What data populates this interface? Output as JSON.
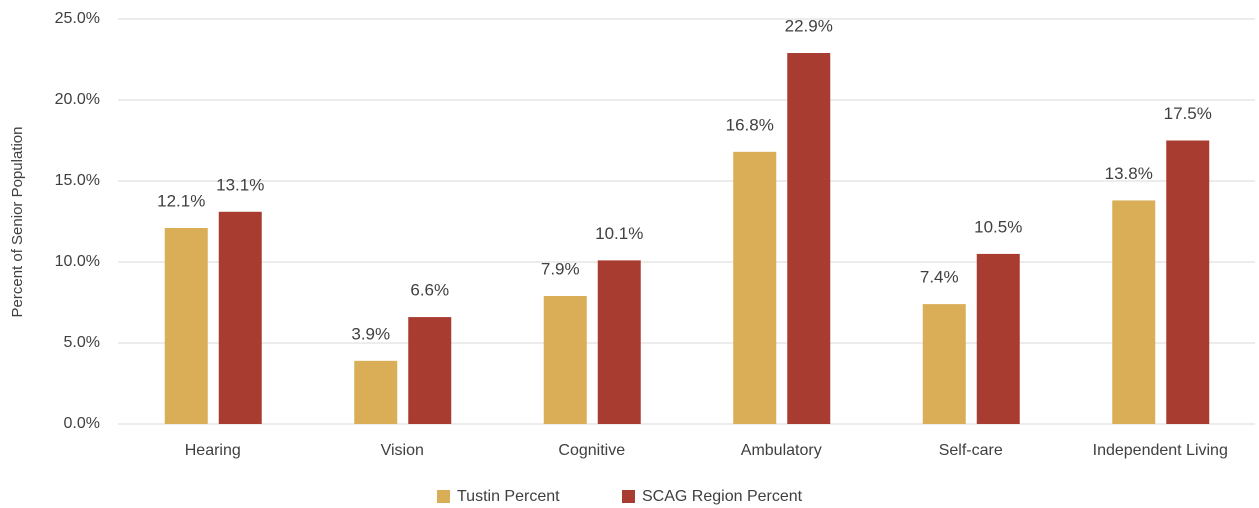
{
  "chart_data": {
    "type": "bar",
    "y_label": "Percent of Senior Population",
    "categories": [
      "Hearing",
      "Vision",
      "Cognitive",
      "Ambulatory",
      "Self-care",
      "Independent Living"
    ],
    "series": [
      {
        "name": "Tustin Percent",
        "color": "#d9ae57",
        "values": [
          12.1,
          3.9,
          7.9,
          16.8,
          7.4,
          13.8
        ],
        "value_labels": [
          "12.1%",
          "3.9%",
          "7.9%",
          "16.8%",
          "7.4%",
          "13.8%"
        ]
      },
      {
        "name": "SCAG Region Percent",
        "color": "#a93c30",
        "values": [
          13.1,
          6.6,
          10.1,
          22.9,
          10.5,
          17.5
        ],
        "value_labels": [
          "13.1%",
          "6.6%",
          "10.1%",
          "22.9%",
          "10.5%",
          "17.5%"
        ]
      }
    ],
    "ylim": [
      0,
      25
    ],
    "yticks": [
      {
        "value": 0,
        "label": "0.0%"
      },
      {
        "value": 5,
        "label": "5.0%"
      },
      {
        "value": 10,
        "label": "10.0%"
      },
      {
        "value": 15,
        "label": "15.0%"
      },
      {
        "value": 20,
        "label": "20.0%"
      },
      {
        "value": 25,
        "label": "25.0%"
      }
    ],
    "grid": true,
    "legend": "bottom"
  }
}
